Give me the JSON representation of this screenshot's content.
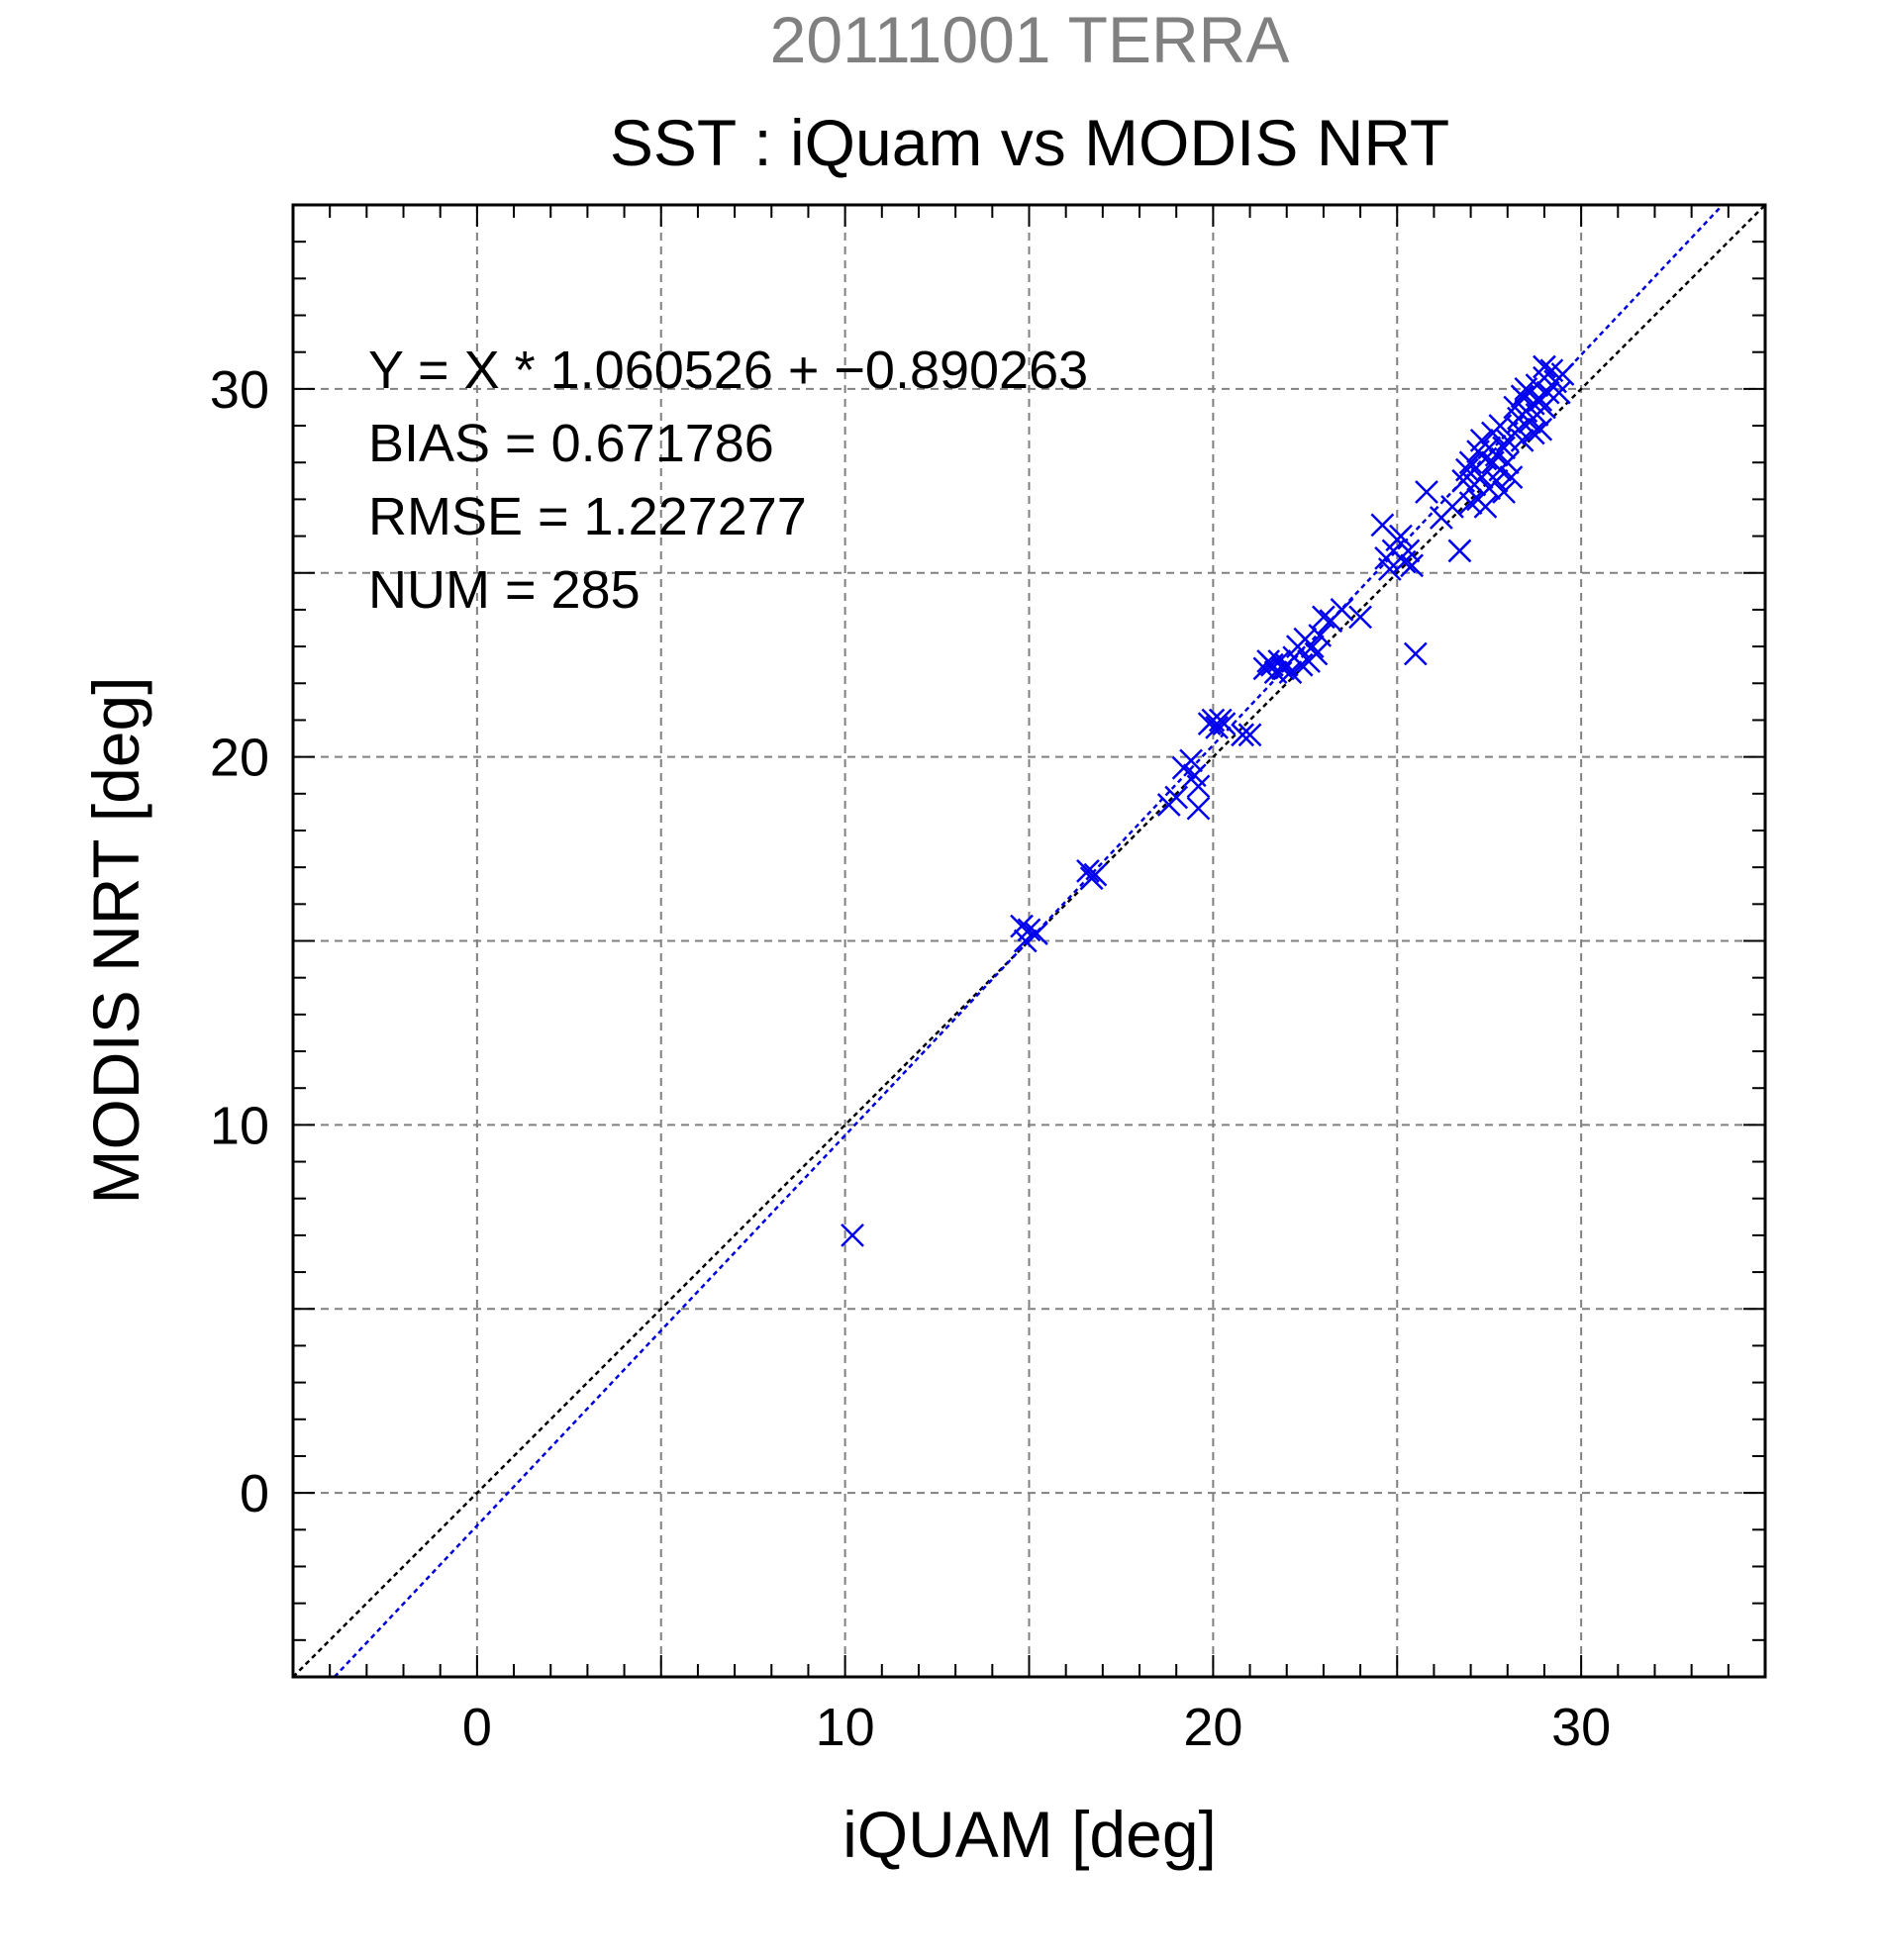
{
  "chart_data": {
    "type": "scatter",
    "title": "20111001 TERRA",
    "subtitle": "SST : iQuam vs MODIS NRT",
    "xlabel": "iQUAM [deg]",
    "ylabel": "MODIS NRT [deg]",
    "xlim": [
      -5,
      35
    ],
    "ylim": [
      -5,
      35
    ],
    "xticks": [
      0,
      10,
      20,
      30
    ],
    "yticks": [
      0,
      10,
      20,
      30
    ],
    "grid": true,
    "stats": {
      "equation": "Y = X * 1.060526 + −0.890263",
      "bias": "BIAS = 0.671786",
      "rmse": "RMSE = 1.227277",
      "num": "NUM = 285"
    },
    "colors": {
      "points": "#0000ee",
      "fit_line": "#0000dd",
      "identity_line": "#000000",
      "title": "#808080",
      "grid": "#808080"
    },
    "fit": {
      "slope": 1.060526,
      "intercept": -0.890263
    },
    "points": [
      [
        10.2,
        7.0
      ],
      [
        14.8,
        15.4
      ],
      [
        14.9,
        15.0
      ],
      [
        15.0,
        15.3
      ],
      [
        15.2,
        15.2
      ],
      [
        16.6,
        16.9
      ],
      [
        16.7,
        16.7
      ],
      [
        16.8,
        16.8
      ],
      [
        18.8,
        18.7
      ],
      [
        19.0,
        18.9
      ],
      [
        19.2,
        19.7
      ],
      [
        19.4,
        19.9
      ],
      [
        19.5,
        19.5
      ],
      [
        19.6,
        18.6
      ],
      [
        19.6,
        19.2
      ],
      [
        19.9,
        20.9
      ],
      [
        20.0,
        21.0
      ],
      [
        20.1,
        20.8
      ],
      [
        20.2,
        21.0
      ],
      [
        20.3,
        20.9
      ],
      [
        20.8,
        20.6
      ],
      [
        21.0,
        20.6
      ],
      [
        21.4,
        22.4
      ],
      [
        21.5,
        22.6
      ],
      [
        21.6,
        22.5
      ],
      [
        21.7,
        22.3
      ],
      [
        21.8,
        22.6
      ],
      [
        21.9,
        22.4
      ],
      [
        22.0,
        22.5
      ],
      [
        22.1,
        22.3
      ],
      [
        22.2,
        22.7
      ],
      [
        22.3,
        23.0
      ],
      [
        22.4,
        22.5
      ],
      [
        22.5,
        23.2
      ],
      [
        22.6,
        22.6
      ],
      [
        22.7,
        23.0
      ],
      [
        22.8,
        22.8
      ],
      [
        22.9,
        23.3
      ],
      [
        23.0,
        23.8
      ],
      [
        23.2,
        23.7
      ],
      [
        23.5,
        24.0
      ],
      [
        24.0,
        23.8
      ],
      [
        24.6,
        26.3
      ],
      [
        24.7,
        25.4
      ],
      [
        24.8,
        25.1
      ],
      [
        24.9,
        25.6
      ],
      [
        25.0,
        25.9
      ],
      [
        25.1,
        26.0
      ],
      [
        25.2,
        25.3
      ],
      [
        25.3,
        25.6
      ],
      [
        25.4,
        25.2
      ],
      [
        25.5,
        22.8
      ],
      [
        25.8,
        27.2
      ],
      [
        26.2,
        26.5
      ],
      [
        26.5,
        26.8
      ],
      [
        26.7,
        25.6
      ],
      [
        26.8,
        27.5
      ],
      [
        26.9,
        27.8
      ],
      [
        27.0,
        28.0
      ],
      [
        27.0,
        26.9
      ],
      [
        27.1,
        27.4
      ],
      [
        27.2,
        28.3
      ],
      [
        27.2,
        27.0
      ],
      [
        27.3,
        28.6
      ],
      [
        27.3,
        27.6
      ],
      [
        27.4,
        28.1
      ],
      [
        27.4,
        26.8
      ],
      [
        27.5,
        28.4
      ],
      [
        27.5,
        27.3
      ],
      [
        27.6,
        28.0
      ],
      [
        27.6,
        28.8
      ],
      [
        27.7,
        27.5
      ],
      [
        27.7,
        28.2
      ],
      [
        27.8,
        29.0
      ],
      [
        27.8,
        27.8
      ],
      [
        27.9,
        28.4
      ],
      [
        27.9,
        27.2
      ],
      [
        28.0,
        28.0
      ],
      [
        28.0,
        28.6
      ],
      [
        28.1,
        27.6
      ],
      [
        28.2,
        29.5
      ],
      [
        28.3,
        29.2
      ],
      [
        28.3,
        28.9
      ],
      [
        28.4,
        29.8
      ],
      [
        28.4,
        28.6
      ],
      [
        28.5,
        30.0
      ],
      [
        28.5,
        29.4
      ],
      [
        28.6,
        29.1
      ],
      [
        28.6,
        29.9
      ],
      [
        28.7,
        28.8
      ],
      [
        28.7,
        29.6
      ],
      [
        28.8,
        30.1
      ],
      [
        28.8,
        29.3
      ],
      [
        28.9,
        29.7
      ],
      [
        28.9,
        28.9
      ],
      [
        29.0,
        30.3
      ],
      [
        29.0,
        29.5
      ],
      [
        29.1,
        29.9
      ],
      [
        29.2,
        30.5
      ],
      [
        29.3,
        30.2
      ],
      [
        29.4,
        29.9
      ],
      [
        29.0,
        30.6
      ],
      [
        29.5,
        30.4
      ]
    ]
  }
}
